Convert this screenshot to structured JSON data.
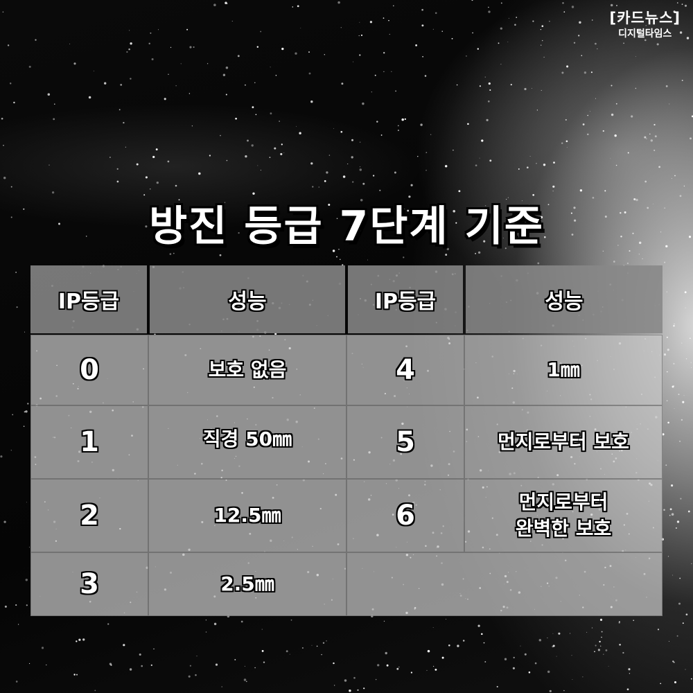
{
  "brand": {
    "line1": "[카드뉴스]",
    "line2": "디지털타임스"
  },
  "title": "방진 등급 7단계 기준",
  "table": {
    "headers": [
      "IP등급",
      "성능",
      "IP등급",
      "성능"
    ],
    "left_rows": [
      {
        "grade": "0",
        "performance": "보호 없음"
      },
      {
        "grade": "1",
        "performance": "직경 50㎜"
      },
      {
        "grade": "2",
        "performance": "12.5㎜"
      },
      {
        "grade": "3",
        "performance": "2.5㎜"
      }
    ],
    "right_rows": [
      {
        "grade": "4",
        "performance": "1㎜"
      },
      {
        "grade": "5",
        "performance": "먼지로부터 보호"
      },
      {
        "grade": "6",
        "performance_line1": "먼지로부터",
        "performance_line2": "완벽한 보호"
      }
    ]
  }
}
